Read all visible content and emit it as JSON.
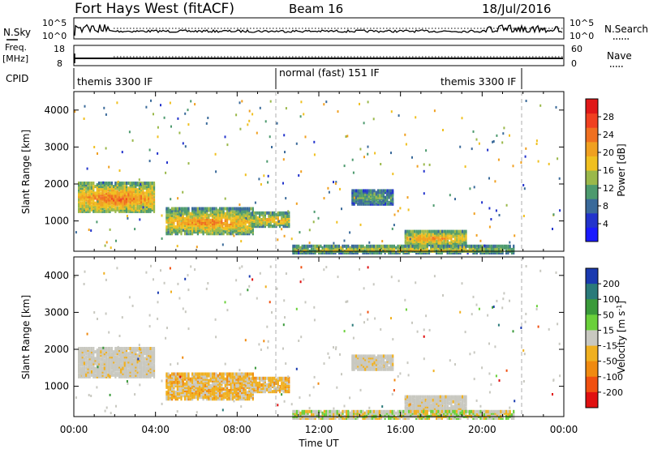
{
  "header": {
    "station": "Fort Hays West (fitACF)",
    "beam": "Beam 16",
    "date": "18/Jul/2016"
  },
  "left_labels": {
    "nsky": "N.Sky",
    "freq": "Freq.",
    "freq_unit": "[MHz]",
    "cpid": "CPID"
  },
  "right_labels": {
    "nsearch": "N.Search",
    "nave": "Nave"
  },
  "noise_panel": {
    "left_ticks": [
      "10^5",
      "10^0"
    ],
    "right_ticks": [
      "10^5",
      "10^0"
    ]
  },
  "freq_panel": {
    "left_ticks": [
      "18",
      "8"
    ],
    "right_ticks": [
      "60",
      "0"
    ]
  },
  "cpid_segments": [
    "themis 3300 IF",
    "normal (fast) 151 IF",
    "themis 3300 IF"
  ],
  "chart_data": [
    {
      "type": "heatmap",
      "name": "Power",
      "ylabel": "Slant Range [km]",
      "xlabel": "",
      "x_range_hours": [
        0,
        24
      ],
      "ylim": [
        180,
        4500
      ],
      "y_ticks": [
        1000,
        2000,
        3000,
        4000
      ],
      "colorbar": {
        "label": "Power [dB]",
        "ticks": [
          "4",
          "8",
          "12",
          "16",
          "20",
          "24",
          "28"
        ],
        "colors": [
          "#1a1aff",
          "#2233cc",
          "#3a6a9a",
          "#4d9a6e",
          "#9ab84a",
          "#f0c020",
          "#f0a020",
          "#f07020",
          "#f04020",
          "#e01818"
        ]
      },
      "features": [
        {
          "t0": 0.2,
          "t1": 3.9,
          "r0": 1300,
          "r1": 2100,
          "level": 22
        },
        {
          "t0": 4.5,
          "t1": 8.8,
          "r0": 700,
          "r1": 1400,
          "level": 20
        },
        {
          "t0": 8.7,
          "t1": 10.5,
          "r0": 900,
          "r1": 1300,
          "level": 18
        },
        {
          "t0": 13.6,
          "t1": 15.6,
          "r0": 1500,
          "r1": 1900,
          "level": 12
        },
        {
          "t0": 16.2,
          "t1": 19.2,
          "r0": 400,
          "r1": 800,
          "level": 20
        },
        {
          "t0": 10.7,
          "t1": 21.5,
          "r0": 180,
          "r1": 400,
          "level": 16
        }
      ]
    },
    {
      "type": "heatmap",
      "name": "Velocity",
      "ylabel": "Slant Range [km]",
      "xlabel": "Time UT",
      "x_range_hours": [
        0,
        24
      ],
      "ylim": [
        180,
        4500
      ],
      "y_ticks": [
        1000,
        2000,
        3000,
        4000
      ],
      "x_tick_labels": [
        "00:00",
        "04:00",
        "08:00",
        "12:00",
        "16:00",
        "20:00",
        "00:00"
      ],
      "colorbar": {
        "label": "Velocity [m s^-1]",
        "ticks": [
          "200",
          "100",
          "50",
          "15",
          "-15",
          "-50",
          "-100",
          "-200"
        ],
        "colors": [
          "#1a3ab0",
          "#2a7a7a",
          "#3a9a3a",
          "#6ad03a",
          "#c8c8c0",
          "#f0b020",
          "#f08a10",
          "#f05010",
          "#e01010"
        ]
      }
    }
  ]
}
